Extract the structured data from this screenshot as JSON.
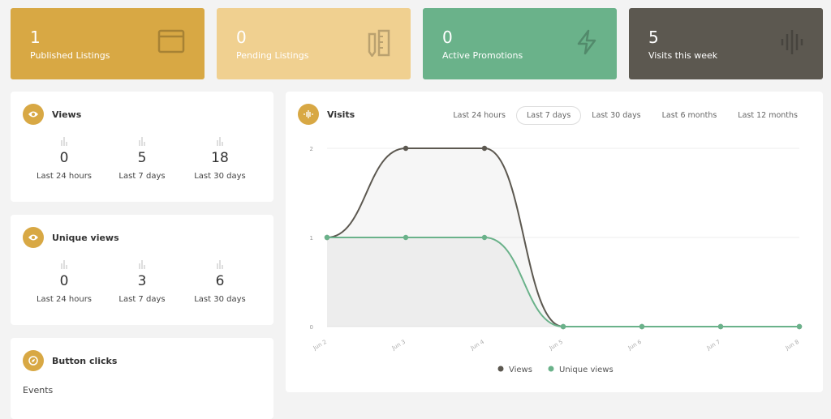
{
  "stats": [
    {
      "value": "1",
      "label": "Published Listings",
      "color": "#d8a844",
      "icon": "browser-window-icon"
    },
    {
      "value": "0",
      "label": "Pending Listings",
      "color": "#f0d090",
      "icon": "pencil-ruler-icon"
    },
    {
      "value": "0",
      "label": "Active Promotions",
      "color": "#6ab28a",
      "icon": "lightning-icon"
    },
    {
      "value": "5",
      "label": "Visits this week",
      "color": "#5c5850",
      "icon": "sound-wave-icon"
    }
  ],
  "views": {
    "title": "Views",
    "items": [
      {
        "value": "0",
        "label": "Last 24 hours"
      },
      {
        "value": "5",
        "label": "Last 7 days"
      },
      {
        "value": "18",
        "label": "Last 30 days"
      }
    ]
  },
  "unique": {
    "title": "Unique views",
    "items": [
      {
        "value": "0",
        "label": "Last 24 hours"
      },
      {
        "value": "3",
        "label": "Last 7 days"
      },
      {
        "value": "6",
        "label": "Last 30 days"
      }
    ]
  },
  "clicks": {
    "title": "Button clicks",
    "events_label": "Events"
  },
  "visits": {
    "title": "Visits",
    "tabs": [
      "Last 24 hours",
      "Last 7 days",
      "Last 30 days",
      "Last 6 months",
      "Last 12 months"
    ],
    "active_tab": "Last 7 days"
  },
  "chart_data": {
    "type": "line",
    "x": [
      "Jun 2",
      "Jun 3",
      "Jun 4",
      "Jun 5",
      "Jun 6",
      "Jun 7",
      "Jun 8"
    ],
    "yticks": [
      "0",
      "1",
      "2"
    ],
    "ylim": [
      0,
      2
    ],
    "grid": true,
    "legend": "bottom",
    "series": [
      {
        "name": "Views",
        "values": [
          1,
          2,
          2,
          0,
          0,
          0,
          0
        ],
        "color": "#5c5850"
      },
      {
        "name": "Unique views",
        "values": [
          1,
          1,
          1,
          0,
          0,
          0,
          0
        ],
        "color": "#6ab28a"
      }
    ]
  }
}
